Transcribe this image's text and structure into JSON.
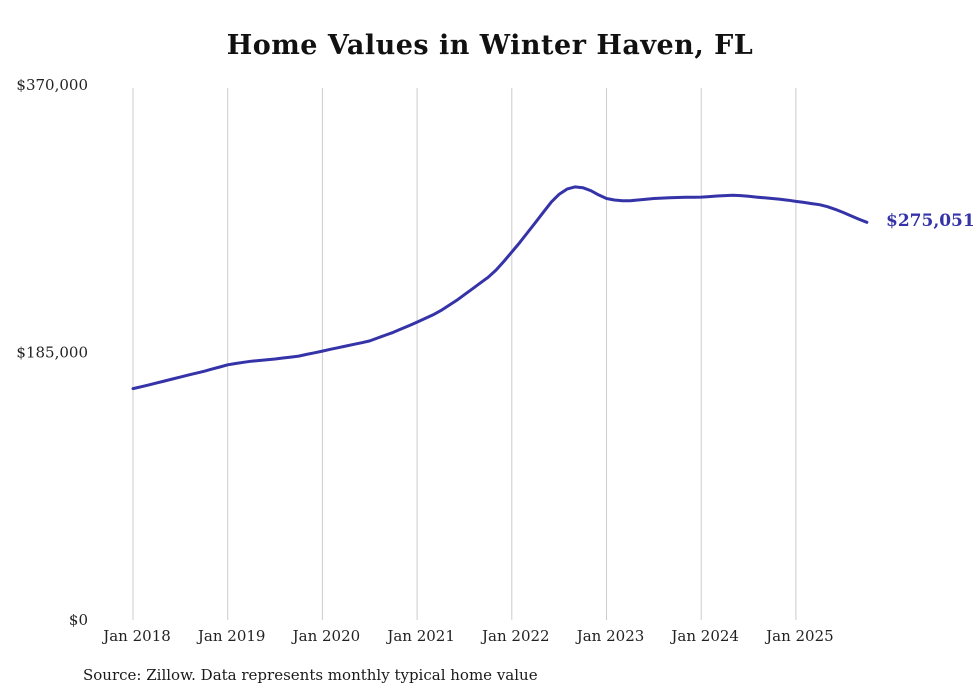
{
  "title": "Home Values in Winter Haven, FL",
  "latest_value_label": "$275,051",
  "source_note": "Source: Zillow. Data represents monthly typical home value",
  "colors": {
    "line": "#3533a8",
    "grid": "#cccccc",
    "axis_text": "#222222",
    "title_text": "#111111"
  },
  "chart_data": {
    "type": "line",
    "title": "Home Values in Winter Haven, FL",
    "xlabel": "",
    "ylabel": "",
    "ylim": [
      0,
      370000
    ],
    "grid": "vertical-only",
    "legend": "none",
    "y_ticks": [
      {
        "value": 0,
        "label": "$0"
      },
      {
        "value": 185000,
        "label": "$185,000"
      },
      {
        "value": 370000,
        "label": "$370,000"
      }
    ],
    "x_tick_labels": [
      "Jan 2018",
      "Jan 2019",
      "Jan 2020",
      "Jan 2021",
      "Jan 2022",
      "Jan 2023",
      "Jan 2024",
      "Jan 2025"
    ],
    "series": [
      {
        "name": "Monthly typical home value",
        "frequency": "monthly",
        "months": [
          "2018-01",
          "2018-02",
          "2018-03",
          "2018-04",
          "2018-05",
          "2018-06",
          "2018-07",
          "2018-08",
          "2018-09",
          "2018-10",
          "2018-11",
          "2018-12",
          "2019-01",
          "2019-02",
          "2019-03",
          "2019-04",
          "2019-05",
          "2019-06",
          "2019-07",
          "2019-08",
          "2019-09",
          "2019-10",
          "2019-11",
          "2019-12",
          "2020-01",
          "2020-02",
          "2020-03",
          "2020-04",
          "2020-05",
          "2020-06",
          "2020-07",
          "2020-08",
          "2020-09",
          "2020-10",
          "2020-11",
          "2020-12",
          "2021-01",
          "2021-02",
          "2021-03",
          "2021-04",
          "2021-05",
          "2021-06",
          "2021-07",
          "2021-08",
          "2021-09",
          "2021-10",
          "2021-11",
          "2021-12",
          "2022-01",
          "2022-02",
          "2022-03",
          "2022-04",
          "2022-05",
          "2022-06",
          "2022-07",
          "2022-08",
          "2022-09",
          "2022-10",
          "2022-11",
          "2022-12",
          "2023-01",
          "2023-02",
          "2023-03",
          "2023-04",
          "2023-05",
          "2023-06",
          "2023-07",
          "2023-08",
          "2023-09",
          "2023-10",
          "2023-11",
          "2023-12",
          "2024-01",
          "2024-02",
          "2024-03",
          "2024-04",
          "2024-05",
          "2024-06",
          "2024-07",
          "2024-08",
          "2024-09",
          "2024-10",
          "2024-11",
          "2024-12",
          "2025-01",
          "2025-02",
          "2025-03",
          "2025-04",
          "2025-05",
          "2025-06",
          "2025-07",
          "2025-08",
          "2025-09",
          "2025-10"
        ],
        "values": [
          160000,
          161300,
          162600,
          164000,
          165300,
          166700,
          168000,
          169400,
          170700,
          172000,
          173500,
          175000,
          176500,
          177400,
          178200,
          179000,
          179500,
          180000,
          180500,
          181200,
          181800,
          182500,
          183700,
          184800,
          186000,
          187200,
          188300,
          189500,
          190700,
          191800,
          193000,
          195000,
          197000,
          199000,
          201300,
          203600,
          206000,
          208500,
          211000,
          214000,
          217500,
          221000,
          225000,
          229000,
          233000,
          237000,
          242000,
          248000,
          254500,
          261000,
          268000,
          275000,
          282000,
          289000,
          294500,
          298000,
          299500,
          299000,
          297000,
          294000,
          291500,
          290500,
          290000,
          290000,
          290500,
          291000,
          291500,
          291800,
          292000,
          292200,
          292300,
          292400,
          292500,
          292800,
          293200,
          293500,
          293800,
          293500,
          293000,
          292500,
          292000,
          291500,
          291000,
          290300,
          289500,
          288800,
          288000,
          287200,
          285800,
          284000,
          281800,
          279500,
          277200,
          275051
        ],
        "latest_value": 275051
      }
    ]
  }
}
